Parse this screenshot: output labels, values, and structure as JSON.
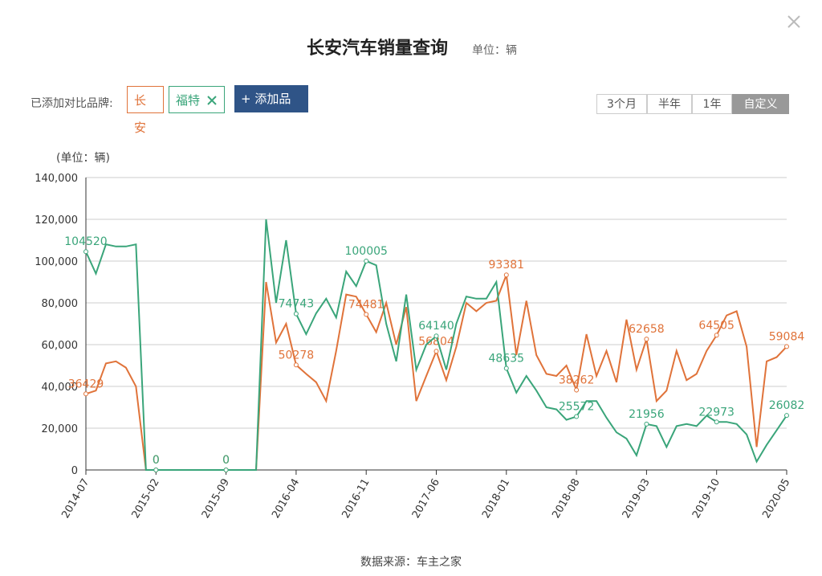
{
  "header": {
    "title": "长安汽车销量查询",
    "unit": "单位：辆",
    "compare_label": "已添加对比品牌:",
    "add_button": "+ 添加品牌",
    "periods": [
      "3个月",
      "半年",
      "1年",
      "自定义"
    ]
  },
  "chart_data": {
    "type": "line",
    "y_unit": "(单位：辆)",
    "categories": [
      "2014-07",
      null,
      null,
      null,
      null,
      null,
      null,
      "2015-02",
      null,
      null,
      null,
      null,
      null,
      null,
      "2015-09",
      null,
      null,
      null,
      null,
      null,
      null,
      "2016-04",
      null,
      null,
      null,
      null,
      null,
      null,
      "2016-11",
      null,
      null,
      null,
      null,
      null,
      null,
      "2017-06",
      null,
      null,
      null,
      null,
      null,
      null,
      "2018-01",
      null,
      null,
      null,
      null,
      null,
      null,
      "2018-08",
      null,
      null,
      null,
      null,
      null,
      null,
      "2019-03",
      null,
      null,
      null,
      null,
      null,
      null,
      "2019-10",
      null,
      null,
      null,
      null,
      null,
      null,
      "2020-05"
    ],
    "series": [
      {
        "name": "长安",
        "color": "#e0733a",
        "values": [
          36429,
          38000,
          51000,
          52000,
          49000,
          40000,
          0,
          0,
          0,
          0,
          0,
          0,
          0,
          0,
          0,
          0,
          0,
          0,
          90000,
          61000,
          70000,
          50278,
          46000,
          42000,
          33000,
          57000,
          84000,
          83000,
          74481,
          66000,
          80000,
          60000,
          78000,
          33000,
          45000,
          56804,
          43000,
          59000,
          80000,
          76000,
          80000,
          81000,
          93381,
          55000,
          81000,
          55000,
          46000,
          45000,
          50000,
          38262,
          65000,
          45000,
          57000,
          42000,
          72000,
          48000,
          62658,
          33000,
          38000,
          57000,
          43000,
          46000,
          57000,
          64505,
          74000,
          76000,
          59000,
          11000,
          52000,
          54000,
          59084
        ]
      },
      {
        "name": "福特",
        "color": "#3aa57a",
        "values": [
          104520,
          94000,
          108000,
          107000,
          107000,
          108000,
          0,
          0,
          0,
          0,
          0,
          0,
          0,
          0,
          0,
          0,
          0,
          0,
          120000,
          80000,
          110000,
          74743,
          65000,
          75000,
          82000,
          73000,
          95000,
          88000,
          100005,
          98000,
          70000,
          52000,
          84000,
          48000,
          60000,
          64140,
          48000,
          70000,
          83000,
          82000,
          82000,
          90000,
          48635,
          37000,
          45000,
          38000,
          30000,
          29000,
          24000,
          25572,
          33000,
          33000,
          25000,
          18000,
          15000,
          7000,
          21956,
          21000,
          11000,
          21000,
          22000,
          21000,
          26000,
          22973,
          23000,
          22000,
          17000,
          4000,
          12000,
          19000,
          26082
        ]
      }
    ],
    "ylim": [
      0,
      140000
    ],
    "yticks": [
      0,
      {
        "value": 20000,
        "label": "20,000"
      },
      {
        "value": 40000,
        "label": "40,000"
      },
      {
        "value": 60000,
        "label": "60,000"
      },
      {
        "value": 80000,
        "label": "80,000"
      },
      {
        "value": 100000,
        "label": "100,000"
      },
      {
        "value": 120000,
        "label": "120,000"
      },
      {
        "value": 140000,
        "label": "140,000"
      }
    ],
    "grid": true,
    "source": "数据来源：车主之家"
  }
}
